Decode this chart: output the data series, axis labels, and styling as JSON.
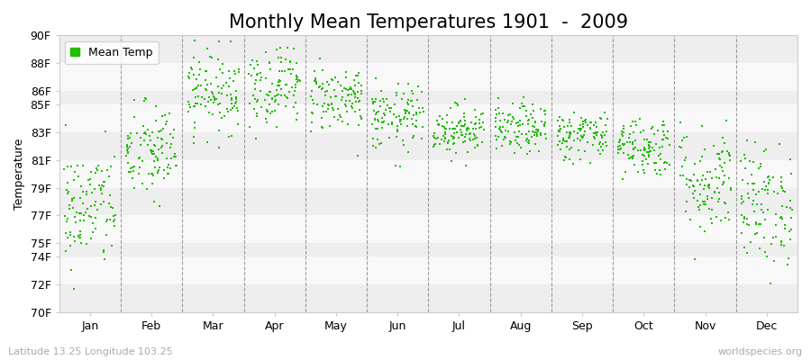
{
  "title": "Monthly Mean Temperatures 1901  -  2009",
  "ylabel": "Temperature",
  "xlabel": "",
  "footnote_left": "Latitude 13.25 Longitude 103.25",
  "footnote_right": "worldspecies.org",
  "legend_label": "Mean Temp",
  "dot_color": "#22bb00",
  "background_color": "#ffffff",
  "plot_bg_color": "#ffffff",
  "band_colors": [
    "#eeeeee",
    "#f8f8f8"
  ],
  "ylim": [
    70,
    90
  ],
  "yticks": [
    70,
    72,
    74,
    75,
    77,
    79,
    81,
    83,
    85,
    86,
    88,
    90
  ],
  "ytick_labels": [
    "70F",
    "72F",
    "74F",
    "75F",
    "77F",
    "79F",
    "81F",
    "83F",
    "85F",
    "86F",
    "88F",
    "90F"
  ],
  "months": [
    "Jan",
    "Feb",
    "Mar",
    "Apr",
    "May",
    "Jun",
    "Jul",
    "Aug",
    "Sep",
    "Oct",
    "Nov",
    "Dec"
  ],
  "month_mean_F": [
    77.5,
    81.5,
    86.0,
    86.5,
    85.5,
    84.0,
    83.2,
    83.2,
    82.8,
    82.0,
    79.5,
    77.8
  ],
  "month_std_F": [
    2.2,
    1.8,
    1.5,
    1.5,
    1.2,
    1.2,
    0.9,
    0.9,
    0.9,
    1.1,
    2.0,
    2.2
  ],
  "n_years": 109,
  "seed": 42,
  "title_fontsize": 15,
  "axis_fontsize": 9,
  "tick_fontsize": 9,
  "legend_fontsize": 9,
  "footnote_fontsize": 8,
  "dot_size": 3,
  "dot_marker": "s"
}
